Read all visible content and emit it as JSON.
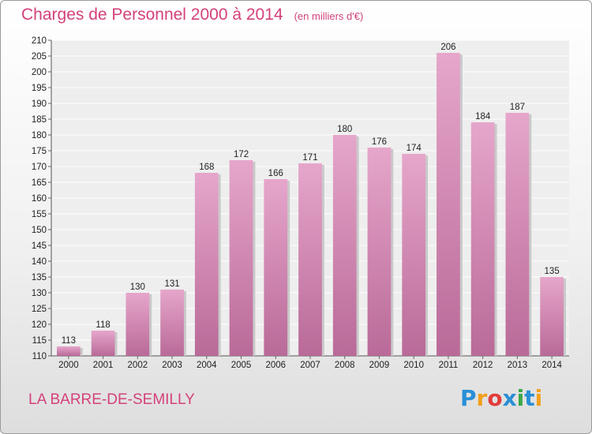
{
  "chart_data": {
    "type": "bar",
    "title": "Charges de Personnel 2000 à 2014",
    "subtitle": "(en milliers d'€)",
    "categories": [
      "2000",
      "2001",
      "2002",
      "2003",
      "2004",
      "2005",
      "2006",
      "2007",
      "2008",
      "2009",
      "2010",
      "2011",
      "2012",
      "2013",
      "2014"
    ],
    "values": [
      113,
      118,
      130,
      131,
      168,
      172,
      166,
      171,
      180,
      176,
      174,
      206,
      184,
      187,
      135
    ],
    "ylim": [
      110,
      210
    ],
    "ytick_step": 5,
    "grid": true,
    "bar_color": "#d88ab5",
    "xlabel": "",
    "ylabel": ""
  },
  "footer": {
    "commune": "LA BARRE-DE-SEMILLY",
    "logo_text": "Proxiti",
    "logo_colors": [
      "#2a8fd6",
      "#f2a01b",
      "#e23b3b",
      "#2a8fd6",
      "#3aa84a",
      "#2a8fd6",
      "#f2a01b"
    ]
  },
  "colors": {
    "accent": "#d4417b",
    "frame_border": "#9a9a9a"
  }
}
